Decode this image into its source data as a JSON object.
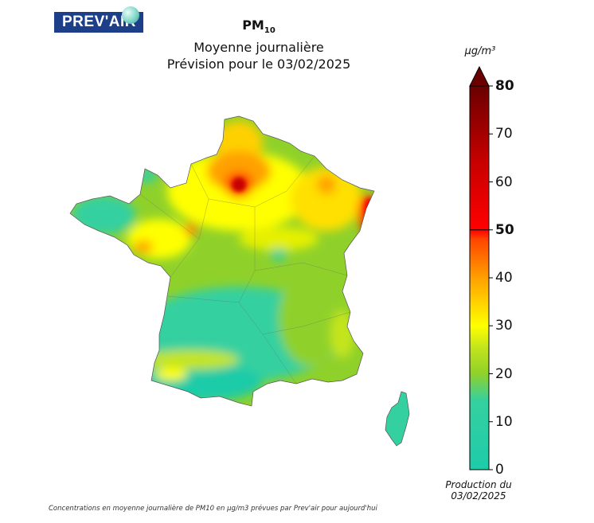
{
  "logo": {
    "text": "PREV'AIR"
  },
  "title": {
    "pollutant": "PM",
    "pollutant_sub": "10",
    "line1": "Moyenne journalière",
    "line2": "Prévision pour le 03/02/2025"
  },
  "colorbar": {
    "unit": "µg/m³",
    "ticks": [
      {
        "value": 0,
        "label": "0",
        "bold": false
      },
      {
        "value": 10,
        "label": "10",
        "bold": false
      },
      {
        "value": 20,
        "label": "20",
        "bold": false
      },
      {
        "value": 30,
        "label": "30",
        "bold": false
      },
      {
        "value": 40,
        "label": "40",
        "bold": false
      },
      {
        "value": 50,
        "label": "50",
        "bold": true
      },
      {
        "value": 60,
        "label": "60",
        "bold": false
      },
      {
        "value": 70,
        "label": "70",
        "bold": false
      },
      {
        "value": 80,
        "label": "80",
        "bold": true
      }
    ],
    "range": [
      0,
      80
    ],
    "colors": {
      "c0": "#1ecba8",
      "c15": "#35d0a0",
      "c20": "#8fd12a",
      "c25": "#c4e51c",
      "c30": "#ffff00",
      "c40": "#ffa000",
      "c48": "#ff4500",
      "c50": "#ff0000",
      "c65": "#c80000",
      "c80": "#6a0000"
    }
  },
  "production": {
    "line1": "Production du",
    "line2": "03/02/2025"
  },
  "footer": {
    "text": "Concentrations en moyenne journalière de PM10 en µg/m3 prévues par Prev'air pour aujourd'hui"
  }
}
